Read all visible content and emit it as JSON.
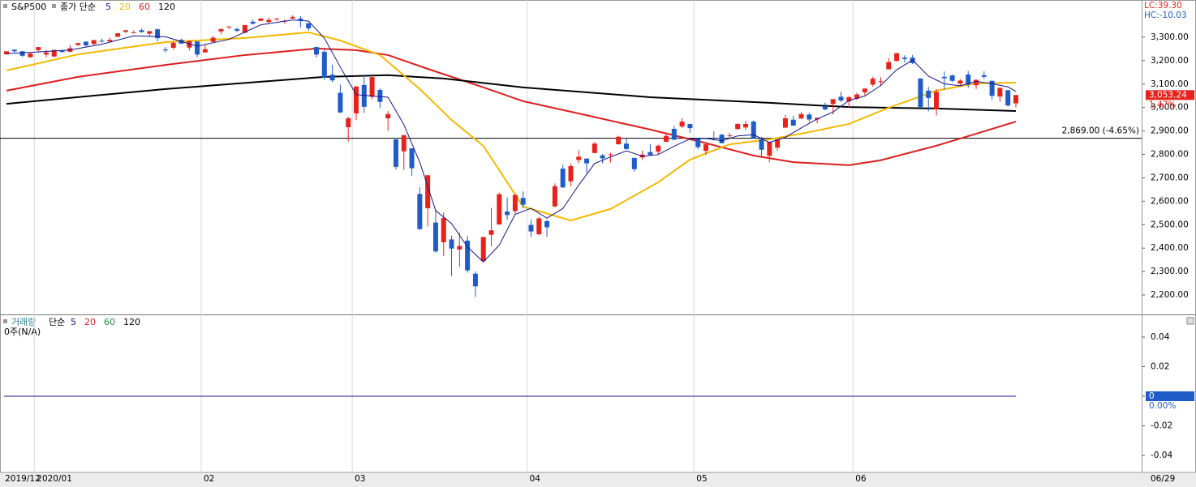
{
  "chart_data": [
    {
      "type": "candlestick",
      "title": "S&P500",
      "method": "종가 단순",
      "open": [
        3227,
        3247,
        3240,
        3215,
        3245,
        3226,
        3218,
        3242,
        3238,
        3267,
        3281,
        3271,
        3285,
        3282,
        3302,
        3323,
        3321,
        3330,
        3315,
        3334,
        3248,
        3255,
        3289,
        3256,
        3282,
        3235,
        3280,
        3325,
        3344,
        3335,
        3319,
        3366,
        3370,
        3365,
        3378,
        3369,
        3380,
        3380,
        3360,
        3258,
        3238,
        3140,
        3063,
        2916,
        2975,
        3096,
        3046,
        3075,
        2954,
        2864,
        2813,
        2826,
        2631,
        2570,
        2509,
        2425,
        2437,
        2394,
        2432,
        2291,
        2345,
        2457,
        2501,
        2556,
        2558,
        2614,
        2499,
        2459,
        2515,
        2578,
        2739,
        2685,
        2776,
        2782,
        2806,
        2796,
        2800,
        2843,
        2846,
        2785,
        2787,
        2810,
        2812,
        2854,
        2909,
        2919,
        2930,
        2869,
        2815,
        2869,
        2884,
        2879,
        2908,
        2915,
        2940,
        2865,
        2794,
        2829,
        2914,
        2948,
        2953,
        2970,
        2949,
        3005,
        3015,
        3046,
        3026,
        3038,
        3065,
        3098,
        3111,
        3163,
        3199,
        3213,
        3213,
        3124,
        3072,
        2994,
        3131,
        3137,
        3102,
        3141,
        3095,
        3138,
        3114,
        3047,
        3074,
        3018
      ],
      "high": [
        3240,
        3248,
        3240,
        3232,
        3258,
        3247,
        3246,
        3245,
        3267,
        3276,
        3282,
        3288,
        3295,
        3299,
        3317,
        3329,
        3329,
        3337,
        3326,
        3338,
        3258,
        3285,
        3294,
        3286,
        3282,
        3268,
        3306,
        3337,
        3347,
        3341,
        3352,
        3375,
        3382,
        3385,
        3381,
        3375,
        3393,
        3390,
        3360,
        3260,
        3247,
        3183,
        3098,
        2960,
        3091,
        3137,
        3131,
        3083,
        2985,
        2864,
        2883,
        2826,
        2660,
        2711,
        2563,
        2553,
        2453,
        2466,
        2453,
        2301,
        2449,
        2572,
        2637,
        2616,
        2631,
        2642,
        2523,
        2533,
        2522,
        2676,
        2756,
        2761,
        2818,
        2782,
        2852,
        2801,
        2807,
        2880,
        2868,
        2785,
        2815,
        2844,
        2842,
        2887,
        2922,
        2954,
        2930,
        2870,
        2844,
        2898,
        2888,
        2892,
        2932,
        2944,
        2945,
        2875,
        2853,
        2865,
        2968,
        2965,
        2981,
        2978,
        2957,
        3021,
        3036,
        3068,
        3050,
        3063,
        3081,
        3131,
        3129,
        3212,
        3233,
        3223,
        3224,
        3124,
        3088,
        3079,
        3154,
        3141,
        3121,
        3156,
        3120,
        3155,
        3115,
        3086,
        3074,
        3054
      ],
      "low": [
        3227,
        3235,
        3216,
        3213,
        3235,
        3215,
        3214,
        3233,
        3236,
        3263,
        3260,
        3268,
        3277,
        3281,
        3302,
        3318,
        3316,
        3320,
        3301,
        3283,
        3235,
        3247,
        3271,
        3243,
        3214,
        3235,
        3280,
        3313,
        3334,
        3322,
        3317,
        3355,
        3370,
        3361,
        3369,
        3357,
        3379,
        3342,
        3328,
        3214,
        3118,
        3108,
        2977,
        2855,
        2946,
        2977,
        3035,
        2999,
        2901,
        2735,
        2734,
        2707,
        2478,
        2493,
        2380,
        2367,
        2281,
        2319,
        2295,
        2192,
        2345,
        2407,
        2500,
        2521,
        2546,
        2571,
        2448,
        2455,
        2448,
        2574,
        2657,
        2664,
        2762,
        2721,
        2805,
        2761,
        2765,
        2843,
        2820,
        2727,
        2776,
        2794,
        2801,
        2852,
        2860,
        2913,
        2892,
        2822,
        2798,
        2859,
        2847,
        2871,
        2906,
        2904,
        2869,
        2793,
        2766,
        2816,
        2914,
        2921,
        2953,
        2938,
        2933,
        2988,
        2970,
        3024,
        2999,
        3032,
        3052,
        3090,
        3091,
        3163,
        3196,
        3193,
        3186,
        2999,
        2984,
        2966,
        3076,
        3109,
        3094,
        3084,
        3079,
        3123,
        3033,
        3024,
        3004,
        3000
      ],
      "close": [
        3240,
        3240,
        3221,
        3231,
        3258,
        3235,
        3246,
        3237,
        3253,
        3275,
        3265,
        3288,
        3283,
        3289,
        3317,
        3330,
        3321,
        3322,
        3326,
        3296,
        3244,
        3276,
        3273,
        3284,
        3226,
        3249,
        3298,
        3335,
        3346,
        3328,
        3352,
        3358,
        3380,
        3374,
        3380,
        3370,
        3386,
        3373,
        3338,
        3226,
        3128,
        3116,
        2979,
        2954,
        3090,
        3003,
        3130,
        3024,
        2972,
        2747,
        2882,
        2741,
        2481,
        2711,
        2386,
        2529,
        2398,
        2409,
        2305,
        2237,
        2447,
        2476,
        2630,
        2541,
        2627,
        2585,
        2471,
        2527,
        2489,
        2664,
        2659,
        2750,
        2790,
        2762,
        2846,
        2783,
        2800,
        2875,
        2823,
        2737,
        2799,
        2798,
        2837,
        2879,
        2863,
        2940,
        2912,
        2831,
        2843,
        2868,
        2848,
        2881,
        2930,
        2930,
        2870,
        2820,
        2853,
        2864,
        2954,
        2923,
        2972,
        2949,
        2956,
        2992,
        3036,
        3030,
        3044,
        3056,
        3081,
        3123,
        3112,
        3194,
        3232,
        3207,
        3190,
        3002,
        3041,
        3067,
        3125,
        3114,
        3115,
        3098,
        3118,
        3131,
        3050,
        3084,
        3009,
        3053.24
      ],
      "up_color": "#e8221b",
      "down_color": "#1f5cc8",
      "series": [
        {
          "name": "5",
          "color": "#14148c",
          "x": [
            0,
            4,
            8,
            12,
            16,
            20,
            24,
            28,
            32,
            36,
            38,
            40,
            42,
            44,
            46,
            48,
            50,
            52,
            54,
            56,
            58,
            60,
            62,
            64,
            66,
            68,
            70,
            72,
            74,
            76,
            78,
            80,
            82,
            84,
            86,
            88,
            90,
            92,
            94,
            96,
            98,
            100,
            102,
            104,
            106,
            108,
            110,
            112,
            114,
            116,
            118,
            120,
            122,
            124,
            126,
            127
          ],
          "values": [
            3230,
            3237,
            3246,
            3270,
            3306,
            3302,
            3262,
            3291,
            3353,
            3374,
            3369,
            3296,
            3173,
            3055,
            3049,
            3044,
            2927,
            2766,
            2560,
            2505,
            2405,
            2341,
            2413,
            2544,
            2570,
            2528,
            2569,
            2669,
            2761,
            2789,
            2815,
            2792,
            2799,
            2835,
            2866,
            2868,
            2858,
            2879,
            2884,
            2851,
            2873,
            2913,
            2951,
            2981,
            3030,
            3049,
            3094,
            3161,
            3203,
            3134,
            3101,
            3093,
            3112,
            3102,
            3088,
            3069
          ]
        },
        {
          "name": "20",
          "color": "#f5b800",
          "x": [
            0,
            9,
            20,
            30,
            38,
            42,
            47,
            52,
            56,
            60,
            65,
            71,
            76,
            82,
            86,
            91,
            96,
            101,
            106,
            111,
            117,
            122,
            127
          ],
          "values": [
            3158,
            3227,
            3279,
            3297,
            3321,
            3286,
            3224,
            3079,
            2947,
            2836,
            2577,
            2518,
            2567,
            2681,
            2778,
            2843,
            2864,
            2895,
            2930,
            2999,
            3072,
            3103,
            3106
          ]
        },
        {
          "name": "60",
          "color": "#dc1e1e",
          "x": [
            0,
            9,
            20,
            30,
            39,
            44,
            48,
            53,
            60,
            65,
            71,
            81,
            88,
            94,
            99,
            106,
            110,
            117,
            122,
            127
          ],
          "values": [
            3072,
            3131,
            3182,
            3224,
            3252,
            3245,
            3224,
            3165,
            3086,
            3027,
            2982,
            2906,
            2848,
            2795,
            2767,
            2754,
            2775,
            2837,
            2888,
            2940
          ]
        },
        {
          "name": "120",
          "color": "#000000",
          "x": [
            0,
            20,
            40,
            48,
            55,
            65,
            81,
            96,
            106,
            117,
            127
          ],
          "values": [
            3016,
            3079,
            3131,
            3138,
            3124,
            3086,
            3044,
            3020,
            3002,
            2996,
            2985
          ]
        }
      ],
      "ylim": [
        2117,
        3459
      ],
      "yticks": [
        {
          "value": 3300,
          "label": "3,300.00"
        },
        {
          "value": 3200,
          "label": "3,200.00"
        },
        {
          "value": 3100,
          "label": "3,100.00"
        },
        {
          "value": 3000,
          "label": "3,000.00"
        },
        {
          "value": 2900,
          "label": "2,900.00"
        },
        {
          "value": 2800,
          "label": "2,800.00"
        },
        {
          "value": 2700,
          "label": "2,700.00"
        },
        {
          "value": 2600,
          "label": "2,600.00"
        },
        {
          "value": 2500,
          "label": "2,500.00"
        },
        {
          "value": 2400,
          "label": "2,400.00"
        },
        {
          "value": 2300,
          "label": "2,300.00"
        },
        {
          "value": 2200,
          "label": "2,200.00"
        }
      ],
      "xlim": [
        0,
        127
      ],
      "xticks": [
        {
          "value": 0,
          "label": "2019/12"
        },
        {
          "value": 4,
          "label": "2020/01"
        },
        {
          "value": 25,
          "label": "02"
        },
        {
          "value": 44,
          "label": "03"
        },
        {
          "value": 66,
          "label": "04"
        },
        {
          "value": 87,
          "label": "05"
        },
        {
          "value": 107,
          "label": "06"
        },
        {
          "value": 127,
          "label": "06/29"
        }
      ],
      "reference_line": {
        "value": 2869,
        "label": "2,869.00 (-4.65%)"
      },
      "last_price": {
        "value": 3053.24,
        "label": "3,053.24"
      },
      "change_label": "1.47%",
      "lc_label": "LC:39.30",
      "hc_label": "HC:-10.03"
    },
    {
      "type": "bar",
      "title": "거래량",
      "method": "단순",
      "legend": [
        {
          "name": "5",
          "color": "#14148c"
        },
        {
          "name": "20",
          "color": "#dc1e1e"
        },
        {
          "name": "60",
          "color": "#1e8c3c"
        },
        {
          "name": "120",
          "color": "#000000"
        }
      ],
      "annotation": "0주(N/A)",
      "ylim": [
        -0.0515,
        0.0548
      ],
      "yticks": [
        0.04,
        0.02,
        0,
        -0.02,
        -0.04
      ],
      "last_value": 0,
      "change_label": "0.00%"
    }
  ]
}
